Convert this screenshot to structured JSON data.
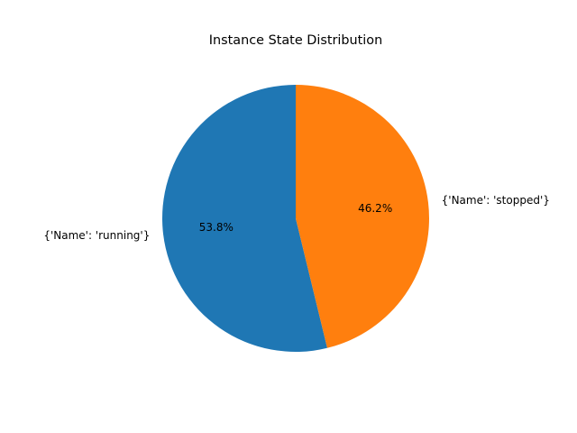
{
  "chart_data": {
    "type": "pie",
    "title": "Instance State Distribution",
    "labels": [
      "{'Name': 'running'}",
      "{'Name': 'stopped'}"
    ],
    "values": [
      53.8,
      46.2
    ],
    "percent_labels": [
      "53.8%",
      "46.2%"
    ],
    "colors": [
      "#1f77b4",
      "#ff7f0e"
    ],
    "start_angle_deg": 90,
    "direction": "counterclockwise",
    "legend": "none"
  }
}
